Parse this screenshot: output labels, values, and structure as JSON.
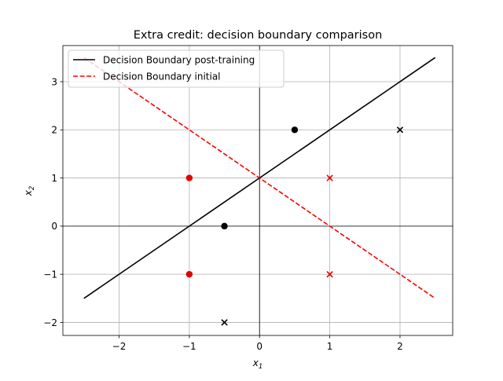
{
  "chart_data": {
    "type": "scatter",
    "title": "Extra credit: decision boundary comparison",
    "xlabel_main": "x",
    "xlabel_sub": "1",
    "ylabel_main": "x",
    "ylabel_sub": "2",
    "xlim": [
      -2.8,
      2.75
    ],
    "ylim": [
      -2.27,
      3.75
    ],
    "xticks": [
      -2,
      -1,
      0,
      1,
      2
    ],
    "yticks": [
      -2,
      -1,
      0,
      1,
      2,
      3
    ],
    "xtick_labels": [
      "−2",
      "−1",
      "0",
      "1",
      "2"
    ],
    "ytick_labels": [
      "−2",
      "−1",
      "0",
      "1",
      "2",
      "3"
    ],
    "grid": true,
    "reference_lines": {
      "x": 0,
      "y": 0
    },
    "legend_position": "upper-left",
    "lines": [
      {
        "name": "Decision Boundary post-training",
        "color": "#000000",
        "style": "solid",
        "x": [
          -2.5,
          2.5
        ],
        "y": [
          -1.5,
          3.5
        ]
      },
      {
        "name": "Decision Boundary initial",
        "color": "#ff0000",
        "style": "dashed",
        "x": [
          -2.5,
          2.5
        ],
        "y": [
          3.5,
          -1.5
        ]
      }
    ],
    "points": [
      {
        "x": -1,
        "y": 1,
        "marker": "circle",
        "color": "#e00000"
      },
      {
        "x": -1,
        "y": -1,
        "marker": "circle",
        "color": "#e00000"
      },
      {
        "x": 1,
        "y": 1,
        "marker": "x",
        "color": "#e00000"
      },
      {
        "x": 1,
        "y": -1,
        "marker": "x",
        "color": "#e00000"
      },
      {
        "x": 0.5,
        "y": 2,
        "marker": "circle",
        "color": "#000000"
      },
      {
        "x": -0.5,
        "y": 0,
        "marker": "circle",
        "color": "#000000"
      },
      {
        "x": 2,
        "y": 2,
        "marker": "x",
        "color": "#000000"
      },
      {
        "x": -0.5,
        "y": -2,
        "marker": "x",
        "color": "#000000"
      }
    ]
  }
}
